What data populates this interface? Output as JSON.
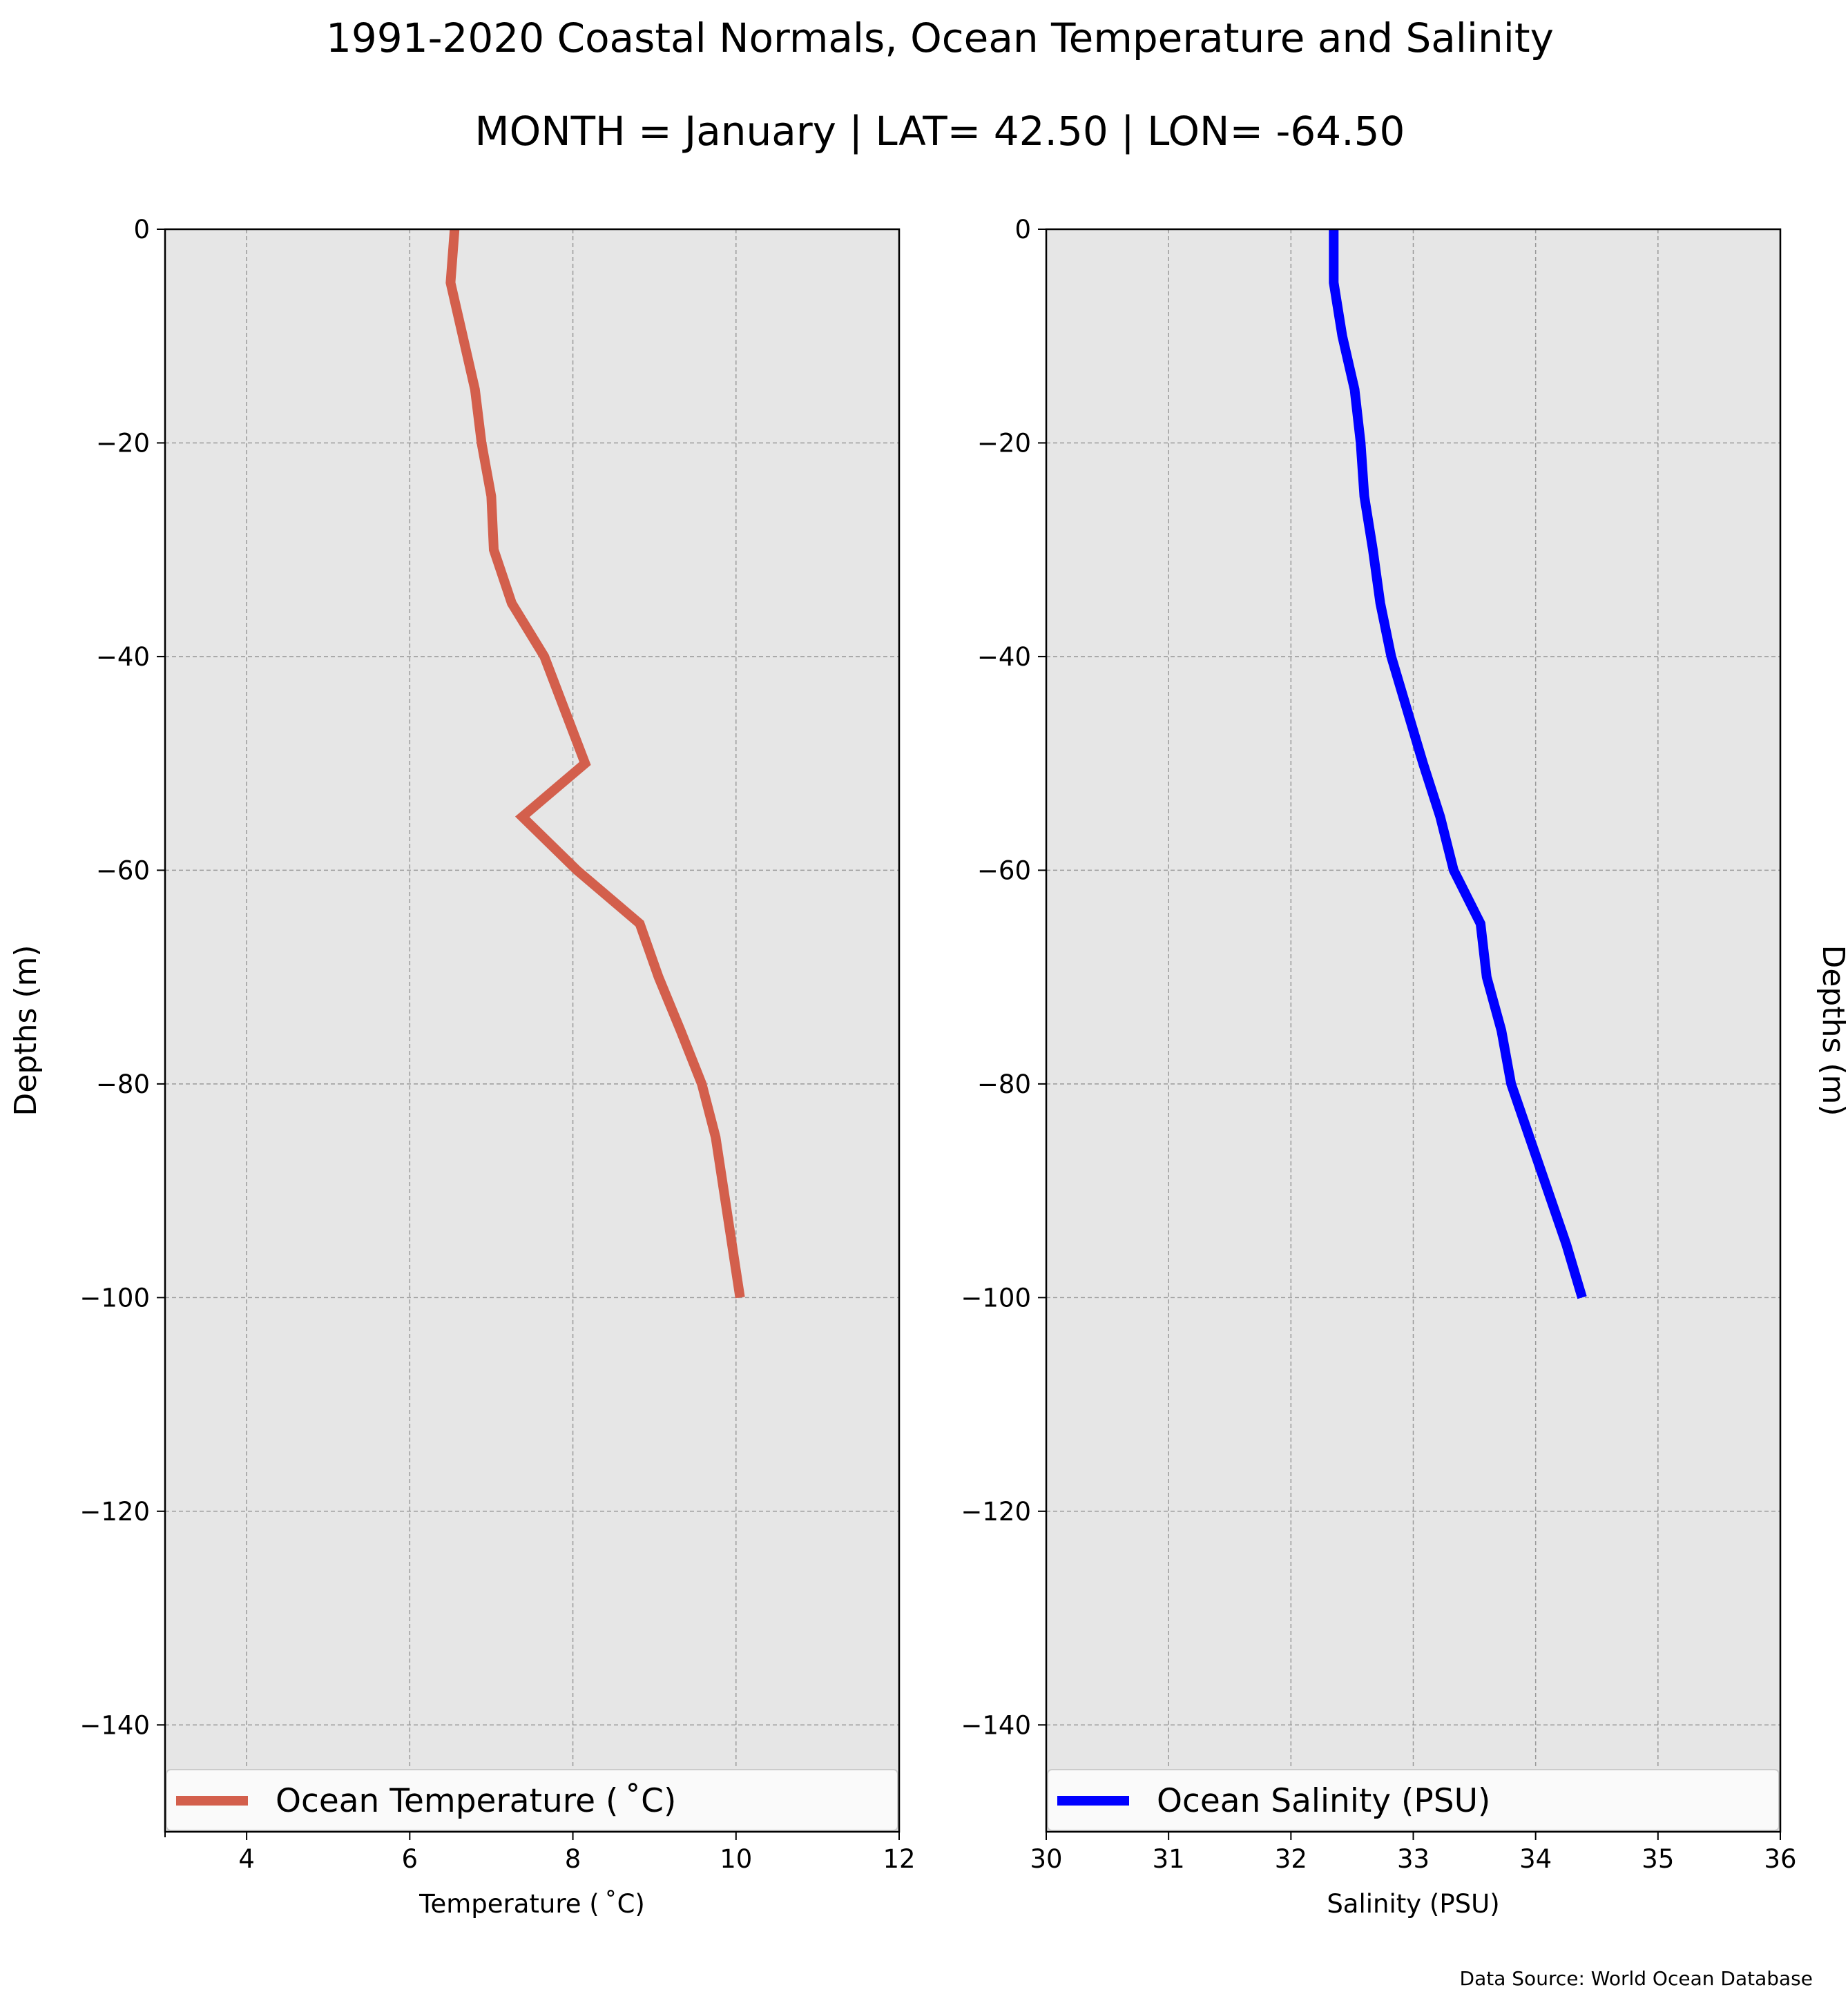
{
  "figure": {
    "title": "1991-2020 Coastal Normals, Ocean Temperature and Salinity",
    "subtitle": "MONTH = January | LAT= 42.50 | LON= -64.50",
    "source": "Data Source: World Ocean Database"
  },
  "chart_data": [
    {
      "type": "line",
      "orientation": "vertical-profile",
      "xlabel": "Temperature ($^\\circ$C)",
      "xlabel_display": "Temperature ( ˚C)",
      "ylabel": "Depths (m)",
      "ylabel_side": "left",
      "xlim": [
        3,
        12
      ],
      "ylim": [
        -150,
        0
      ],
      "xticks": [
        4,
        6,
        8,
        10,
        12
      ],
      "xtick_labels": [
        "4",
        "6",
        "8",
        "10",
        "12"
      ],
      "yticks": [
        0,
        -20,
        -40,
        -60,
        -80,
        -100,
        -120,
        -140
      ],
      "ytick_labels": [
        "0",
        "−20",
        "−40",
        "−60",
        "−80",
        "−100",
        "−120",
        "−140"
      ],
      "grid": true,
      "background": "#e6e6e6",
      "legend_placement": "lower center",
      "series": [
        {
          "name": "Ocean Temperature ($^\\circ$C)",
          "label_display": "Ocean Temperature ( ˚C)",
          "color": "#d35f4c",
          "x": [
            6.55,
            6.5,
            6.65,
            6.8,
            6.88,
            7.0,
            7.03,
            7.25,
            7.65,
            7.9,
            8.15,
            7.38,
            8.05,
            8.82,
            9.05,
            9.32,
            9.58,
            9.75,
            9.95,
            10.05
          ],
          "y": [
            0,
            -5,
            -10,
            -15,
            -20,
            -25,
            -30,
            -35,
            -40,
            -45,
            -50,
            -55,
            -60,
            -65,
            -70,
            -75,
            -80,
            -85,
            -95,
            -100
          ]
        }
      ]
    },
    {
      "type": "line",
      "orientation": "vertical-profile",
      "xlabel": "Salinity (PSU)",
      "xlabel_display": "Salinity (PSU)",
      "ylabel": "Depths (m)",
      "ylabel_side": "right",
      "xlim": [
        30,
        36
      ],
      "ylim": [
        -150,
        0
      ],
      "xticks": [
        30,
        31,
        32,
        33,
        34,
        35,
        36
      ],
      "xtick_labels": [
        "30",
        "31",
        "32",
        "33",
        "34",
        "35",
        "36"
      ],
      "yticks": [
        0,
        -20,
        -40,
        -60,
        -80,
        -100,
        -120,
        -140
      ],
      "ytick_labels": [
        "0",
        "−20",
        "−40",
        "−60",
        "−80",
        "−100",
        "−120",
        "−140"
      ],
      "grid": true,
      "background": "#e6e6e6",
      "legend_placement": "lower center",
      "series": [
        {
          "name": "Ocean Salinity (PSU)",
          "label_display": "Ocean Salinity (PSU)",
          "color": "#0000ff",
          "x": [
            32.35,
            32.35,
            32.42,
            32.52,
            32.57,
            32.6,
            32.67,
            32.73,
            32.82,
            32.95,
            33.08,
            33.22,
            33.33,
            33.55,
            33.6,
            33.72,
            33.8,
            33.95,
            34.25,
            34.38
          ],
          "y": [
            0,
            -5,
            -10,
            -15,
            -20,
            -25,
            -30,
            -35,
            -40,
            -45,
            -50,
            -55,
            -60,
            -65,
            -70,
            -75,
            -80,
            -85,
            -95,
            -100
          ]
        }
      ]
    }
  ]
}
